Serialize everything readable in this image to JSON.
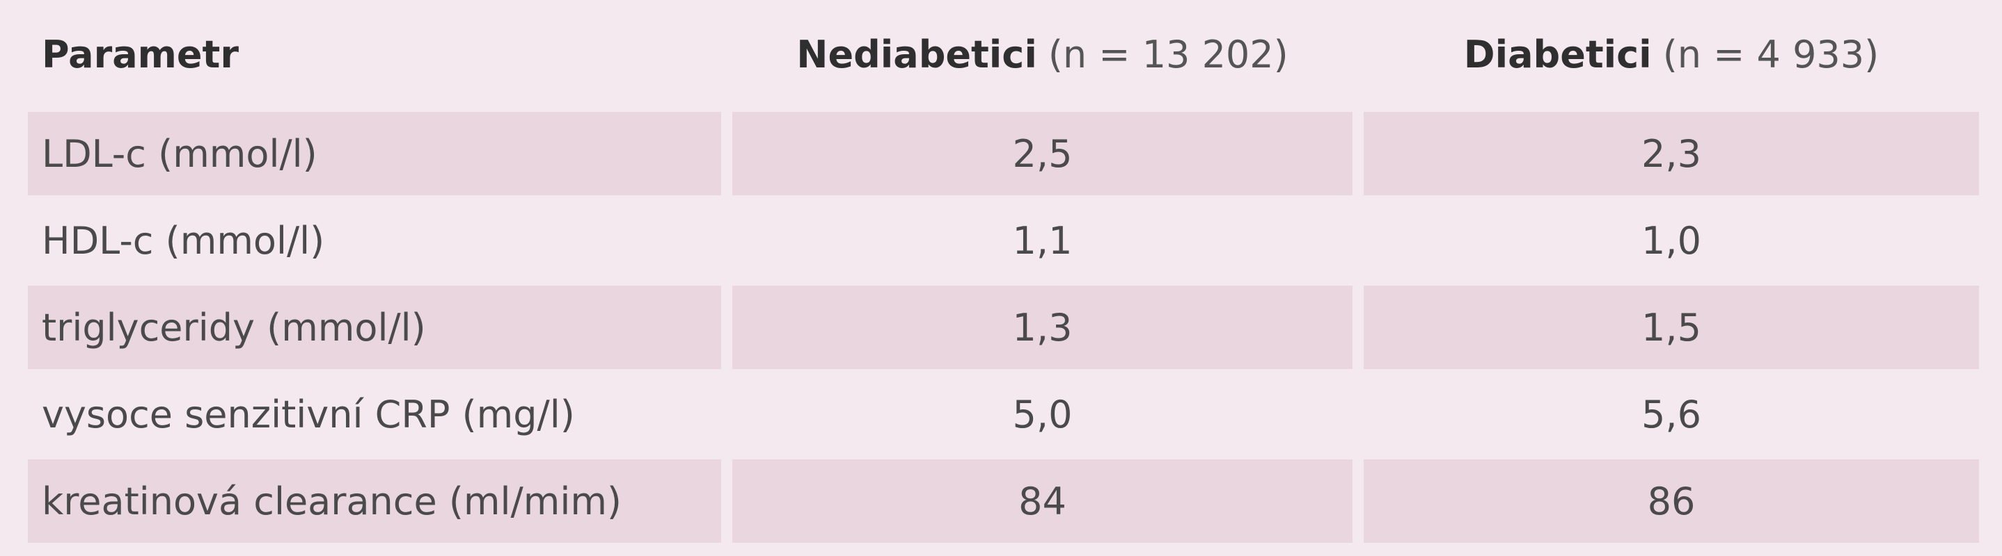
{
  "table": {
    "header": [
      {
        "name": "Parametr"
      },
      {
        "name": "Nediabetici",
        "n": "(n = 13 202)"
      },
      {
        "name": "Diabetici",
        "n": "(n = 4 933)"
      }
    ],
    "rows": [
      [
        "LDL-c (mmol/l)",
        "2,5",
        "2,3"
      ],
      [
        "HDL-c (mmol/l)",
        "1,1",
        "1,0"
      ],
      [
        "triglyceridy (mmol/l)",
        "1,3",
        "1,5"
      ],
      [
        "vysoce senzitivní CRP (mg/l)",
        "5,0",
        "5,6"
      ],
      [
        "kreatinová clearance (ml/mim)",
        "84",
        "86"
      ]
    ]
  }
}
